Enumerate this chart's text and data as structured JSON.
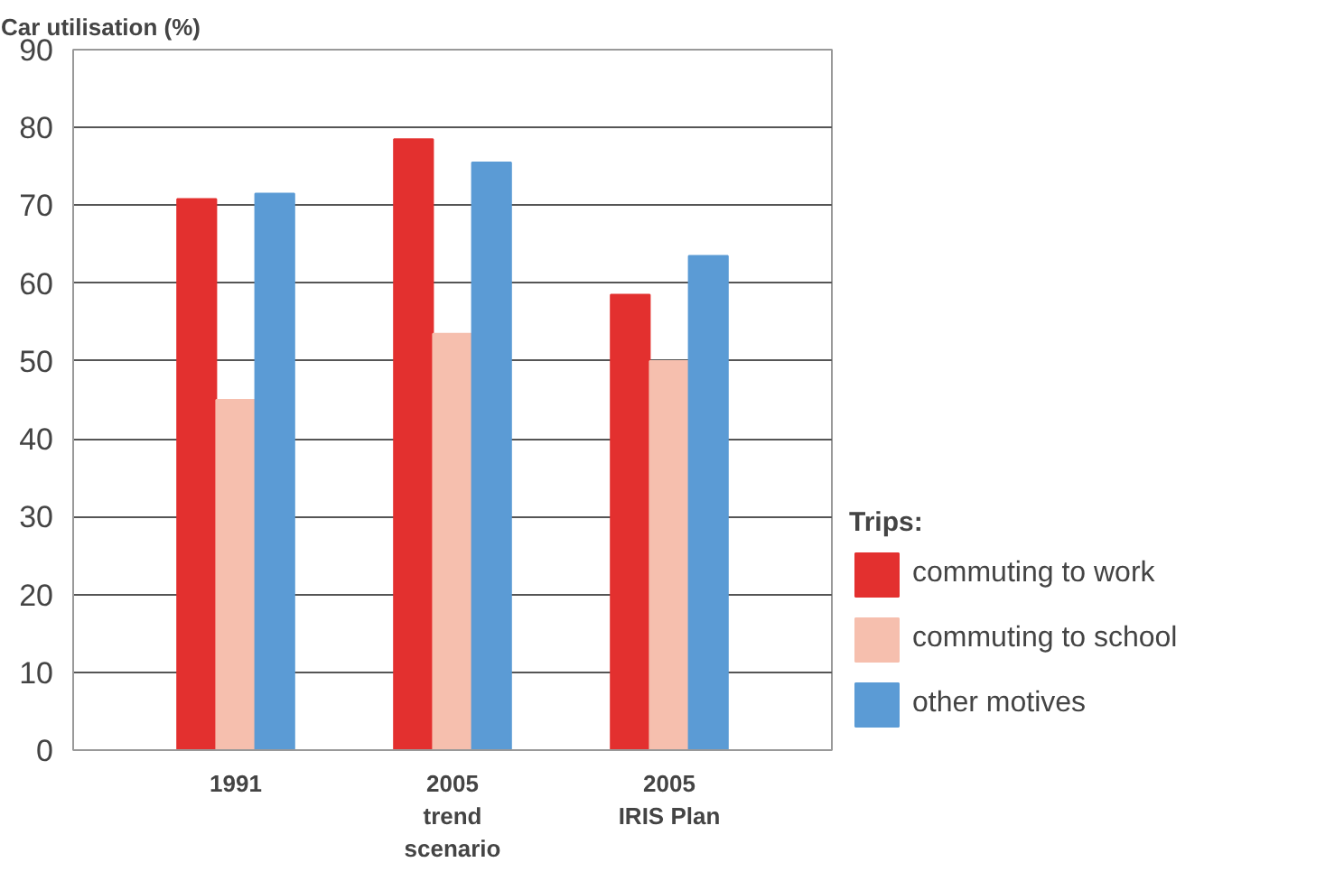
{
  "chart_data": {
    "type": "bar",
    "title": "Car utilisation (%)",
    "categories": [
      "1991",
      "2005\ntrend\nscenario",
      "2005\nIRIS Plan"
    ],
    "series": [
      {
        "name": "commuting to work",
        "color": "#e3302f",
        "values": [
          70.8,
          78.5,
          58.5
        ]
      },
      {
        "name": "commuting to school",
        "color": "#f6bfae",
        "values": [
          45,
          53.5,
          50
        ]
      },
      {
        "name": "other motives",
        "color": "#5b9bd5",
        "values": [
          71.5,
          75.5,
          63.5
        ]
      }
    ],
    "legend_title": "Trips:",
    "legend": "right",
    "ylim": [
      0,
      90
    ],
    "yticks": [
      0,
      10,
      20,
      30,
      40,
      50,
      60,
      70,
      80,
      90
    ],
    "grid": "y"
  }
}
